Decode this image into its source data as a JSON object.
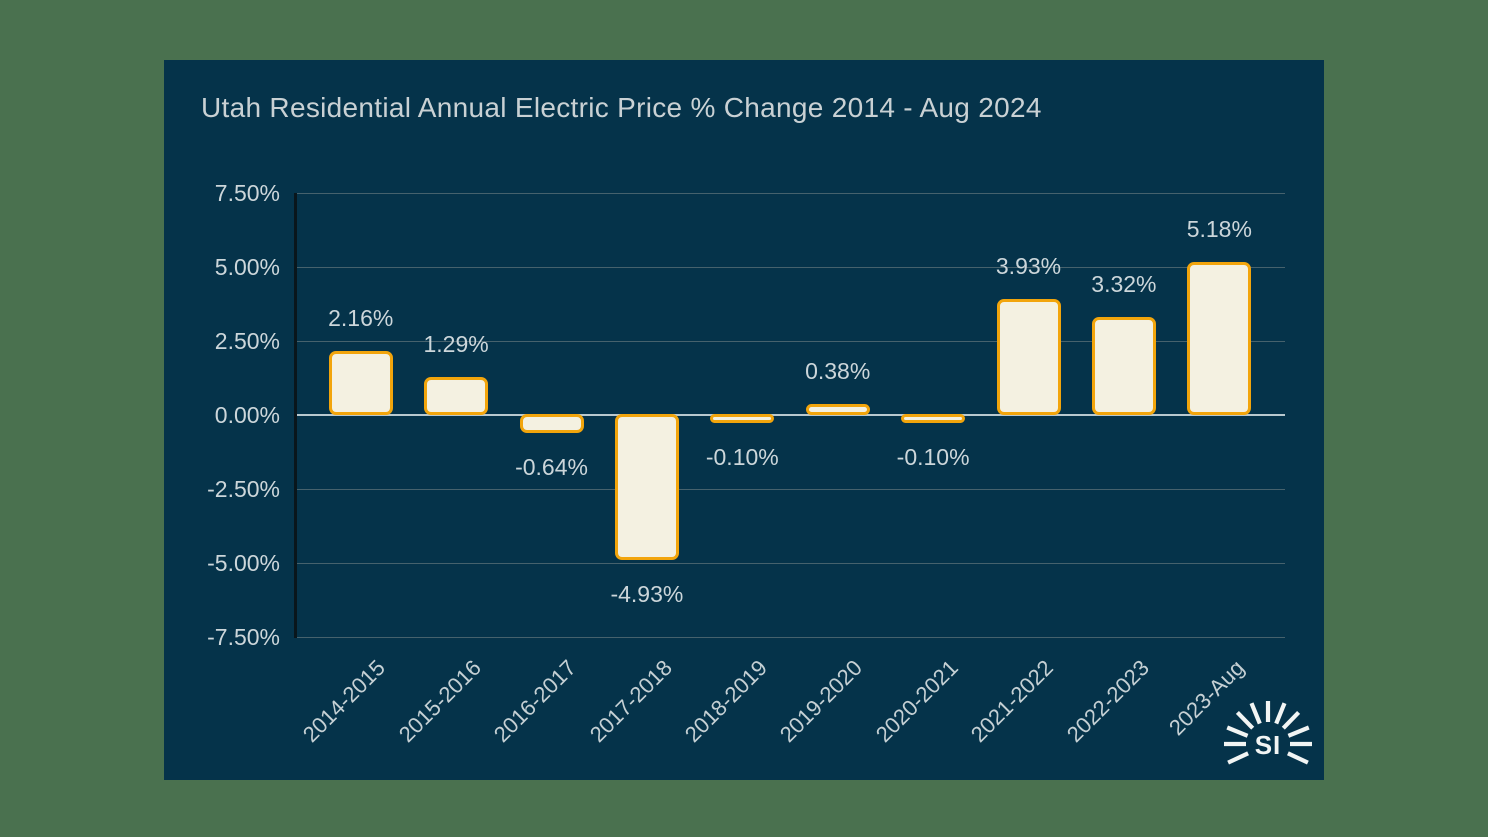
{
  "colors": {
    "page_background": "#4a714f",
    "panel_background": "#05334a",
    "bar_fill": "#f4f1e1",
    "bar_border": "#f2a50c",
    "grid_line": "#46626d",
    "zero_line": "#b9c9cf",
    "axis_line": "#09161c",
    "text": "#ccd6da"
  },
  "chart_data": {
    "type": "bar",
    "title": "Utah Residential Annual Electric Price % Change 2014 - Aug 2024",
    "categories": [
      "2014-2015",
      "2015-2016",
      "2016-2017",
      "2017-2018",
      "2018-2019",
      "2019-2020",
      "2020-2021",
      "2021-2022",
      "2022-2023",
      "2023-Aug"
    ],
    "values": [
      2.16,
      1.29,
      -0.64,
      -4.93,
      -0.1,
      0.38,
      -0.1,
      3.93,
      3.32,
      5.18
    ],
    "value_labels": [
      "2.16%",
      "1.29%",
      "-0.64%",
      "-4.93%",
      "-0.10%",
      "0.38%",
      "-0.10%",
      "3.93%",
      "3.32%",
      "5.18%"
    ],
    "xlabel": "",
    "ylabel": "",
    "y_ticks": [
      "7.50%",
      "5.00%",
      "2.50%",
      "0.00%",
      "-2.50%",
      "-5.00%",
      "-7.50%"
    ],
    "y_tick_values": [
      7.5,
      5.0,
      2.5,
      0.0,
      -2.5,
      -5.0,
      -7.5
    ],
    "ylim": [
      -7.5,
      7.5
    ],
    "grid": true,
    "legend_position": "none",
    "data_labels": true
  },
  "logo": {
    "text": "SI"
  }
}
